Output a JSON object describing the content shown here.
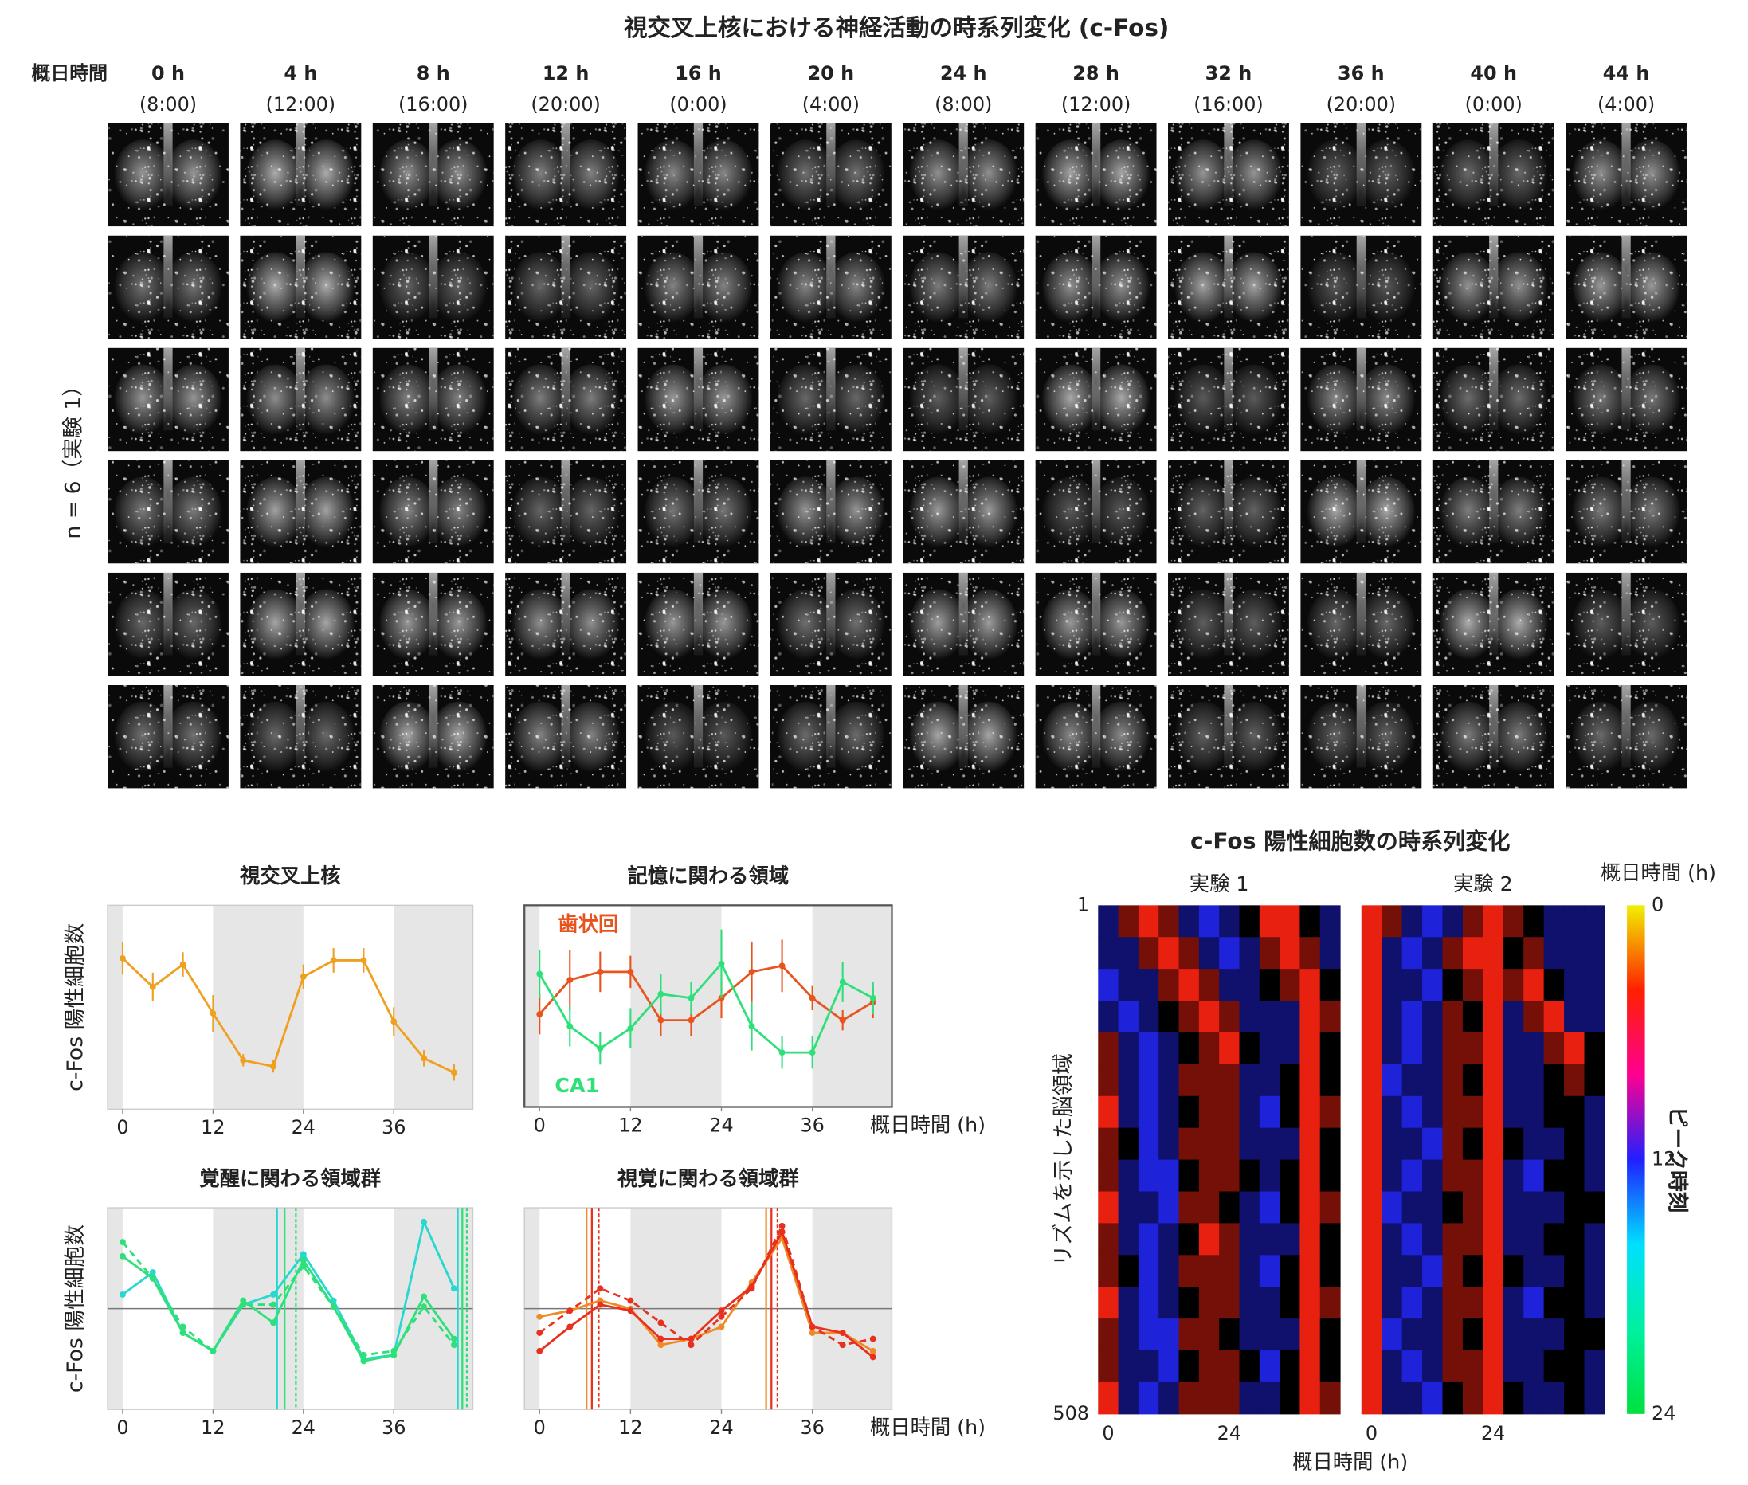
{
  "image_grid": {
    "title": "視交叉上核における神経活動の時系列変化 (c-Fos)",
    "time_axis_label": "概日時間",
    "row_label": "n = 6（実験 1）",
    "columns": [
      {
        "hour": "0 h",
        "clock": "(8:00)"
      },
      {
        "hour": "4 h",
        "clock": "(12:00)"
      },
      {
        "hour": "8 h",
        "clock": "(16:00)"
      },
      {
        "hour": "12 h",
        "clock": "(20:00)"
      },
      {
        "hour": "16 h",
        "clock": "(0:00)"
      },
      {
        "hour": "20 h",
        "clock": "(4:00)"
      },
      {
        "hour": "24 h",
        "clock": "(8:00)"
      },
      {
        "hour": "28 h",
        "clock": "(12:00)"
      },
      {
        "hour": "32 h",
        "clock": "(16:00)"
      },
      {
        "hour": "36 h",
        "clock": "(20:00)"
      },
      {
        "hour": "40 h",
        "clock": "(0:00)"
      },
      {
        "hour": "44 h",
        "clock": "(4:00)"
      }
    ]
  },
  "chart_data": [
    {
      "type": "line",
      "title": "視交叉上核",
      "ylabel": "c-Fos 陽性細胞数",
      "x": [
        0,
        4,
        8,
        12,
        16,
        20,
        24,
        28,
        32,
        36,
        40,
        44
      ],
      "xlim": [
        -2,
        46.5
      ],
      "xticks": [
        0,
        12,
        24,
        36
      ],
      "ylim": [
        0,
        10
      ],
      "shaded": [
        [
          -2,
          0
        ],
        [
          12,
          24
        ],
        [
          36,
          46.5
        ]
      ],
      "series": [
        {
          "color": "#f0a020",
          "values": [
            7.4,
            6.0,
            7.1,
            4.7,
            2.4,
            2.1,
            6.5,
            7.3,
            7.3,
            4.3,
            2.5,
            1.8
          ],
          "errors": [
            0.8,
            0.7,
            0.6,
            0.9,
            0.3,
            0.3,
            0.6,
            0.6,
            0.6,
            0.7,
            0.4,
            0.4
          ]
        }
      ]
    },
    {
      "type": "line",
      "title": "記憶に関わる領域",
      "xlabel": "概日時間 (h)",
      "frame": true,
      "x": [
        0,
        4,
        8,
        12,
        16,
        20,
        24,
        28,
        32,
        36,
        40,
        44
      ],
      "xlim": [
        -2,
        46.5
      ],
      "xticks": [
        0,
        12,
        24,
        36
      ],
      "ylim": [
        0,
        10
      ],
      "shaded": [
        [
          -2,
          0
        ],
        [
          12,
          24
        ],
        [
          36,
          46.5
        ]
      ],
      "series": [
        {
          "name": "歯状回",
          "color": "#e8541e",
          "values": [
            4.6,
            6.3,
            6.7,
            6.7,
            4.3,
            4.3,
            5.4,
            6.7,
            7.0,
            5.4,
            4.3,
            5.2
          ],
          "errors": [
            1.0,
            1.5,
            1.0,
            0.8,
            0.8,
            0.8,
            1.0,
            1.5,
            1.3,
            0.6,
            0.5,
            0.8
          ]
        },
        {
          "name": "CA1",
          "color": "#2ee07a",
          "values": [
            6.6,
            4.0,
            2.9,
            3.9,
            5.6,
            5.4,
            7.1,
            4.0,
            2.7,
            2.7,
            6.2,
            5.4
          ],
          "errors": [
            1.2,
            1.0,
            0.8,
            1.0,
            1.0,
            0.8,
            1.7,
            1.2,
            0.8,
            0.8,
            1.0,
            0.8
          ]
        }
      ]
    },
    {
      "type": "line",
      "title": "覚醒に関わる領域群",
      "ylabel": "c-Fos 陽性細胞数",
      "x": [
        0,
        4,
        8,
        12,
        16,
        20,
        24,
        28,
        32,
        36,
        40,
        44
      ],
      "xlim": [
        -2,
        46.5
      ],
      "xticks": [
        0,
        12,
        24,
        36
      ],
      "ylim": [
        0,
        10
      ],
      "shaded": [
        [
          -2,
          0
        ],
        [
          12,
          24
        ],
        [
          36,
          46.5
        ]
      ],
      "baseline": 5,
      "vlines": [
        20.5,
        21.5,
        23,
        44.5,
        45.1,
        45.7
      ],
      "vline_colors": [
        "#27d8d0",
        "#2ee07a",
        "#2ee07a",
        "#27d8d0",
        "#2ee07a",
        "#2ee07a"
      ],
      "series": [
        {
          "color": "#27d8d0",
          "values": [
            5.7,
            6.8,
            3.8,
            2.9,
            5.2,
            5.7,
            7.7,
            5.4,
            2.5,
            2.7,
            9.3,
            6.0
          ]
        },
        {
          "color": "#2ee07a",
          "values": [
            7.6,
            6.5,
            3.8,
            2.9,
            5.4,
            4.3,
            7.4,
            5.1,
            2.4,
            2.7,
            5.6,
            3.5
          ]
        },
        {
          "color": "#2ee07a",
          "dash": true,
          "values": [
            8.3,
            6.5,
            4.1,
            2.9,
            5.2,
            5.2,
            7.1,
            5.1,
            2.7,
            2.9,
            5.1,
            3.2
          ]
        }
      ]
    },
    {
      "type": "line",
      "title": "視覚に関わる領域群",
      "xlabel": "概日時間 (h)",
      "x": [
        0,
        4,
        8,
        12,
        16,
        20,
        24,
        28,
        32,
        36,
        40,
        44
      ],
      "xlim": [
        -2,
        46.5
      ],
      "xticks": [
        0,
        12,
        24,
        36
      ],
      "ylim": [
        0,
        10
      ],
      "shaded": [
        [
          -2,
          0
        ],
        [
          12,
          24
        ],
        [
          36,
          46.5
        ]
      ],
      "baseline": 5,
      "vlines": [
        6.2,
        6.9,
        7.8,
        29.9,
        30.6,
        31.4
      ],
      "vline_colors": [
        "#f08a24",
        "#e8301e",
        "#e8301e",
        "#f08a24",
        "#e8301e",
        "#e8301e"
      ],
      "series": [
        {
          "color": "#f08a24",
          "values": [
            4.6,
            4.9,
            5.4,
            5.0,
            3.2,
            3.5,
            4.1,
            6.3,
            8.5,
            3.8,
            3.8,
            2.9
          ]
        },
        {
          "color": "#e8301e",
          "values": [
            2.9,
            4.1,
            5.2,
            4.9,
            3.5,
            3.5,
            4.9,
            6.1,
            8.8,
            4.1,
            3.8,
            2.6
          ]
        },
        {
          "color": "#e8301e",
          "dash": true,
          "values": [
            3.8,
            4.9,
            6.0,
            5.4,
            4.3,
            3.2,
            4.6,
            6.0,
            9.1,
            4.1,
            3.2,
            3.5
          ]
        }
      ]
    },
    {
      "type": "heatmap",
      "title": "c-Fos 陽性細胞数の時系列変化",
      "xlabel": "概日時間 (h)",
      "ylabel": "リズムを示した脳領域",
      "x": [
        0,
        4,
        8,
        12,
        16,
        20,
        24,
        28,
        32,
        36,
        40,
        44
      ],
      "xlim": [
        -2,
        46
      ],
      "ylim": [
        1,
        508
      ],
      "yticks": [
        1,
        508
      ],
      "zlim": [
        -2,
        2
      ],
      "cmap": [
        "#1e22d8",
        "#000000",
        "#e82010"
      ],
      "panels": [
        {
          "title": "実験 1",
          "xticks": [
            0,
            24
          ],
          "values": [
            [
              -1,
              1,
              2,
              1,
              -1,
              -2,
              -1,
              0,
              2,
              2,
              0,
              -1
            ],
            [
              -1,
              -1,
              1,
              2,
              1,
              -1,
              -2,
              -1,
              1,
              2,
              1,
              -1
            ],
            [
              -2,
              -1,
              -1,
              1,
              2,
              1,
              -1,
              -1,
              0,
              1,
              2,
              0
            ],
            [
              -1,
              -2,
              -1,
              0,
              1,
              2,
              1,
              -1,
              -1,
              -1,
              2,
              1
            ],
            [
              1,
              -1,
              -2,
              -1,
              0,
              1,
              2,
              0,
              -1,
              -1,
              2,
              0
            ],
            [
              1,
              -1,
              -2,
              -1,
              1,
              1,
              1,
              -1,
              -1,
              0,
              2,
              0
            ],
            [
              2,
              -1,
              -2,
              -1,
              0,
              1,
              1,
              -1,
              -2,
              0,
              2,
              1
            ],
            [
              1,
              0,
              -2,
              -1,
              1,
              1,
              1,
              -1,
              -1,
              -1,
              2,
              0
            ],
            [
              1,
              -1,
              -2,
              -2,
              0,
              1,
              1,
              0,
              -1,
              0,
              2,
              0
            ],
            [
              2,
              -1,
              -1,
              -2,
              1,
              1,
              0,
              -1,
              -2,
              0,
              2,
              1
            ],
            [
              1,
              -1,
              -2,
              -1,
              0,
              2,
              1,
              -1,
              -1,
              -1,
              2,
              0
            ],
            [
              1,
              0,
              -2,
              -1,
              1,
              1,
              1,
              -1,
              -2,
              0,
              2,
              0
            ],
            [
              2,
              -1,
              -2,
              -1,
              0,
              1,
              1,
              -1,
              -1,
              0,
              2,
              1
            ],
            [
              1,
              -1,
              -2,
              -2,
              1,
              1,
              0,
              -1,
              -1,
              -1,
              2,
              0
            ],
            [
              1,
              -1,
              -1,
              -2,
              0,
              1,
              1,
              0,
              -2,
              0,
              2,
              0
            ],
            [
              2,
              -1,
              -2,
              -1,
              1,
              1,
              1,
              -1,
              -1,
              0,
              2,
              1
            ]
          ]
        },
        {
          "title": "実験 2",
          "xticks": [
            0,
            24
          ],
          "values": [
            [
              2,
              1,
              -1,
              -2,
              -1,
              1,
              2,
              1,
              0,
              -1,
              -1,
              -1
            ],
            [
              2,
              -1,
              -2,
              -1,
              1,
              2,
              2,
              0,
              1,
              -1,
              -1,
              -1
            ],
            [
              2,
              -1,
              -1,
              -2,
              0,
              1,
              2,
              1,
              2,
              0,
              -1,
              -1
            ],
            [
              2,
              -1,
              -2,
              -1,
              1,
              0,
              2,
              -1,
              1,
              2,
              -1,
              -1
            ],
            [
              2,
              -1,
              -2,
              -1,
              1,
              1,
              2,
              -1,
              -1,
              1,
              2,
              0
            ],
            [
              2,
              -2,
              -1,
              -1,
              1,
              0,
              2,
              -1,
              -1,
              0,
              1,
              0
            ],
            [
              2,
              -1,
              -2,
              -1,
              1,
              1,
              2,
              -1,
              -1,
              0,
              0,
              -1
            ],
            [
              2,
              -1,
              -1,
              -2,
              1,
              0,
              2,
              0,
              -1,
              -1,
              0,
              -1
            ],
            [
              2,
              -1,
              -2,
              -1,
              1,
              1,
              2,
              -1,
              -2,
              0,
              0,
              -1
            ],
            [
              2,
              -2,
              -1,
              -1,
              0,
              1,
              2,
              -1,
              -1,
              -1,
              0,
              0
            ],
            [
              2,
              -1,
              -2,
              -1,
              1,
              1,
              2,
              -1,
              -1,
              0,
              0,
              -1
            ],
            [
              2,
              -1,
              -1,
              -2,
              1,
              0,
              2,
              0,
              -1,
              -1,
              0,
              -1
            ],
            [
              2,
              -1,
              -2,
              -1,
              1,
              1,
              2,
              -1,
              -2,
              0,
              0,
              -1
            ],
            [
              2,
              -2,
              -1,
              -1,
              1,
              0,
              2,
              -1,
              -1,
              -1,
              0,
              0
            ],
            [
              2,
              -1,
              -2,
              -1,
              1,
              1,
              2,
              -1,
              -1,
              0,
              0,
              -1
            ],
            [
              2,
              -1,
              -1,
              -2,
              0,
              1,
              2,
              0,
              -1,
              -1,
              0,
              -1
            ]
          ]
        }
      ],
      "colorbar": {
        "label": "概日時間 (h)",
        "title": "ピーク時刻",
        "lim": [
          0,
          24
        ],
        "ticks": [
          0,
          12,
          24
        ],
        "colors": [
          "#f0f000",
          "#ff2000",
          "#ff0090",
          "#2020ff",
          "#00e0ff",
          "#00f0a0",
          "#00e040"
        ]
      }
    }
  ]
}
